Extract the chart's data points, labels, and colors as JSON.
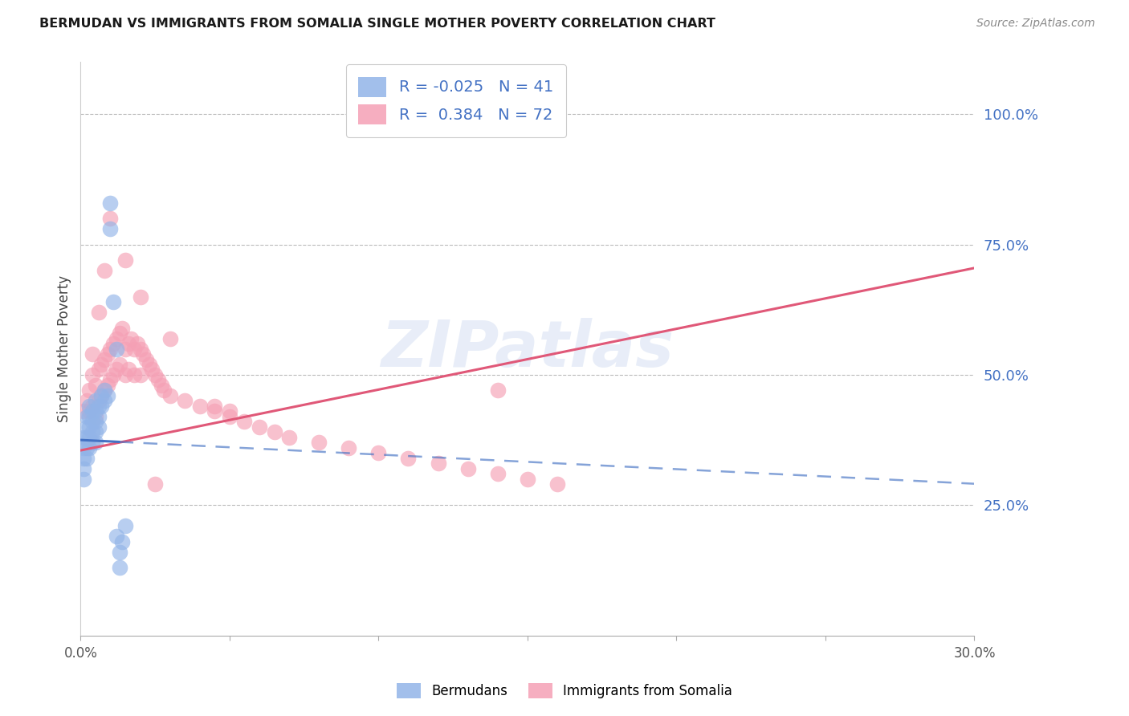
{
  "title": "BERMUDAN VS IMMIGRANTS FROM SOMALIA SINGLE MOTHER POVERTY CORRELATION CHART",
  "source": "Source: ZipAtlas.com",
  "ylabel": "Single Mother Poverty",
  "ytick_labels": [
    "100.0%",
    "75.0%",
    "50.0%",
    "25.0%"
  ],
  "ytick_values": [
    1.0,
    0.75,
    0.5,
    0.25
  ],
  "xlim": [
    0.0,
    0.3
  ],
  "ylim": [
    0.0,
    1.1
  ],
  "legend_bermudan_R": "-0.025",
  "legend_bermudan_N": "41",
  "legend_somalia_R": "0.384",
  "legend_somalia_N": "72",
  "bermudan_color": "#92b4e8",
  "somalia_color": "#f5a0b5",
  "bermudan_line_color": "#4472c4",
  "somalia_line_color": "#e05878",
  "watermark": "ZIPatlas",
  "bermudan_scatter_x": [
    0.001,
    0.001,
    0.001,
    0.001,
    0.001,
    0.002,
    0.002,
    0.002,
    0.002,
    0.002,
    0.003,
    0.003,
    0.003,
    0.003,
    0.003,
    0.004,
    0.004,
    0.004,
    0.004,
    0.005,
    0.005,
    0.005,
    0.005,
    0.005,
    0.006,
    0.006,
    0.006,
    0.007,
    0.007,
    0.008,
    0.008,
    0.009,
    0.01,
    0.01,
    0.011,
    0.012,
    0.013,
    0.014,
    0.015,
    0.013,
    0.012
  ],
  "bermudan_scatter_y": [
    0.38,
    0.36,
    0.34,
    0.32,
    0.3,
    0.42,
    0.4,
    0.38,
    0.36,
    0.34,
    0.44,
    0.42,
    0.4,
    0.38,
    0.36,
    0.43,
    0.41,
    0.39,
    0.37,
    0.45,
    0.43,
    0.41,
    0.39,
    0.37,
    0.44,
    0.42,
    0.4,
    0.46,
    0.44,
    0.47,
    0.45,
    0.46,
    0.83,
    0.78,
    0.64,
    0.55,
    0.13,
    0.18,
    0.21,
    0.16,
    0.19
  ],
  "somalia_scatter_x": [
    0.001,
    0.002,
    0.003,
    0.003,
    0.004,
    0.004,
    0.005,
    0.005,
    0.006,
    0.006,
    0.007,
    0.007,
    0.008,
    0.008,
    0.009,
    0.009,
    0.01,
    0.01,
    0.011,
    0.011,
    0.012,
    0.012,
    0.013,
    0.013,
    0.014,
    0.015,
    0.015,
    0.016,
    0.016,
    0.017,
    0.018,
    0.018,
    0.019,
    0.02,
    0.02,
    0.021,
    0.022,
    0.023,
    0.024,
    0.025,
    0.026,
    0.027,
    0.028,
    0.03,
    0.035,
    0.04,
    0.045,
    0.05,
    0.055,
    0.06,
    0.065,
    0.07,
    0.08,
    0.09,
    0.1,
    0.11,
    0.12,
    0.13,
    0.14,
    0.15,
    0.16,
    0.045,
    0.03,
    0.02,
    0.015,
    0.01,
    0.008,
    0.006,
    0.004,
    0.05,
    0.14,
    0.025
  ],
  "somalia_scatter_y": [
    0.43,
    0.45,
    0.47,
    0.43,
    0.5,
    0.44,
    0.48,
    0.42,
    0.51,
    0.45,
    0.52,
    0.46,
    0.53,
    0.47,
    0.54,
    0.48,
    0.55,
    0.49,
    0.56,
    0.5,
    0.57,
    0.51,
    0.58,
    0.52,
    0.59,
    0.55,
    0.5,
    0.56,
    0.51,
    0.57,
    0.55,
    0.5,
    0.56,
    0.55,
    0.5,
    0.54,
    0.53,
    0.52,
    0.51,
    0.5,
    0.49,
    0.48,
    0.47,
    0.46,
    0.45,
    0.44,
    0.43,
    0.42,
    0.41,
    0.4,
    0.39,
    0.38,
    0.37,
    0.36,
    0.35,
    0.34,
    0.33,
    0.32,
    0.31,
    0.3,
    0.29,
    0.44,
    0.57,
    0.65,
    0.72,
    0.8,
    0.7,
    0.62,
    0.54,
    0.43,
    0.47,
    0.29
  ]
}
